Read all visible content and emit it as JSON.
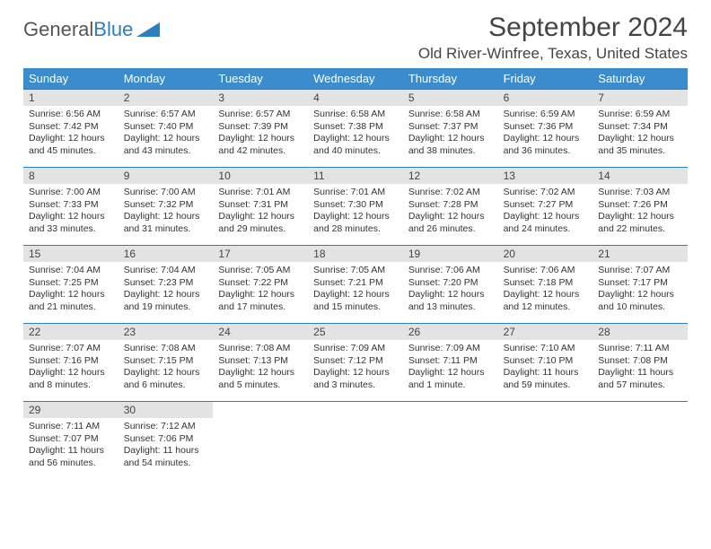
{
  "logo": {
    "text1": "General",
    "text2": "Blue"
  },
  "title": "September 2024",
  "location": "Old River-Winfree, Texas, United States",
  "colors": {
    "header_bg": "#3b8ccc",
    "header_text": "#ffffff",
    "daynum_bg": "#e3e3e3",
    "week_border": "#2a7fbd",
    "logo_blue": "#2a7fbd"
  },
  "day_names": [
    "Sunday",
    "Monday",
    "Tuesday",
    "Wednesday",
    "Thursday",
    "Friday",
    "Saturday"
  ],
  "weeks": [
    [
      {
        "n": "1",
        "sr": "Sunrise: 6:56 AM",
        "ss": "Sunset: 7:42 PM",
        "d1": "Daylight: 12 hours",
        "d2": "and 45 minutes."
      },
      {
        "n": "2",
        "sr": "Sunrise: 6:57 AM",
        "ss": "Sunset: 7:40 PM",
        "d1": "Daylight: 12 hours",
        "d2": "and 43 minutes."
      },
      {
        "n": "3",
        "sr": "Sunrise: 6:57 AM",
        "ss": "Sunset: 7:39 PM",
        "d1": "Daylight: 12 hours",
        "d2": "and 42 minutes."
      },
      {
        "n": "4",
        "sr": "Sunrise: 6:58 AM",
        "ss": "Sunset: 7:38 PM",
        "d1": "Daylight: 12 hours",
        "d2": "and 40 minutes."
      },
      {
        "n": "5",
        "sr": "Sunrise: 6:58 AM",
        "ss": "Sunset: 7:37 PM",
        "d1": "Daylight: 12 hours",
        "d2": "and 38 minutes."
      },
      {
        "n": "6",
        "sr": "Sunrise: 6:59 AM",
        "ss": "Sunset: 7:36 PM",
        "d1": "Daylight: 12 hours",
        "d2": "and 36 minutes."
      },
      {
        "n": "7",
        "sr": "Sunrise: 6:59 AM",
        "ss": "Sunset: 7:34 PM",
        "d1": "Daylight: 12 hours",
        "d2": "and 35 minutes."
      }
    ],
    [
      {
        "n": "8",
        "sr": "Sunrise: 7:00 AM",
        "ss": "Sunset: 7:33 PM",
        "d1": "Daylight: 12 hours",
        "d2": "and 33 minutes."
      },
      {
        "n": "9",
        "sr": "Sunrise: 7:00 AM",
        "ss": "Sunset: 7:32 PM",
        "d1": "Daylight: 12 hours",
        "d2": "and 31 minutes."
      },
      {
        "n": "10",
        "sr": "Sunrise: 7:01 AM",
        "ss": "Sunset: 7:31 PM",
        "d1": "Daylight: 12 hours",
        "d2": "and 29 minutes."
      },
      {
        "n": "11",
        "sr": "Sunrise: 7:01 AM",
        "ss": "Sunset: 7:30 PM",
        "d1": "Daylight: 12 hours",
        "d2": "and 28 minutes."
      },
      {
        "n": "12",
        "sr": "Sunrise: 7:02 AM",
        "ss": "Sunset: 7:28 PM",
        "d1": "Daylight: 12 hours",
        "d2": "and 26 minutes."
      },
      {
        "n": "13",
        "sr": "Sunrise: 7:02 AM",
        "ss": "Sunset: 7:27 PM",
        "d1": "Daylight: 12 hours",
        "d2": "and 24 minutes."
      },
      {
        "n": "14",
        "sr": "Sunrise: 7:03 AM",
        "ss": "Sunset: 7:26 PM",
        "d1": "Daylight: 12 hours",
        "d2": "and 22 minutes."
      }
    ],
    [
      {
        "n": "15",
        "sr": "Sunrise: 7:04 AM",
        "ss": "Sunset: 7:25 PM",
        "d1": "Daylight: 12 hours",
        "d2": "and 21 minutes."
      },
      {
        "n": "16",
        "sr": "Sunrise: 7:04 AM",
        "ss": "Sunset: 7:23 PM",
        "d1": "Daylight: 12 hours",
        "d2": "and 19 minutes."
      },
      {
        "n": "17",
        "sr": "Sunrise: 7:05 AM",
        "ss": "Sunset: 7:22 PM",
        "d1": "Daylight: 12 hours",
        "d2": "and 17 minutes."
      },
      {
        "n": "18",
        "sr": "Sunrise: 7:05 AM",
        "ss": "Sunset: 7:21 PM",
        "d1": "Daylight: 12 hours",
        "d2": "and 15 minutes."
      },
      {
        "n": "19",
        "sr": "Sunrise: 7:06 AM",
        "ss": "Sunset: 7:20 PM",
        "d1": "Daylight: 12 hours",
        "d2": "and 13 minutes."
      },
      {
        "n": "20",
        "sr": "Sunrise: 7:06 AM",
        "ss": "Sunset: 7:18 PM",
        "d1": "Daylight: 12 hours",
        "d2": "and 12 minutes."
      },
      {
        "n": "21",
        "sr": "Sunrise: 7:07 AM",
        "ss": "Sunset: 7:17 PM",
        "d1": "Daylight: 12 hours",
        "d2": "and 10 minutes."
      }
    ],
    [
      {
        "n": "22",
        "sr": "Sunrise: 7:07 AM",
        "ss": "Sunset: 7:16 PM",
        "d1": "Daylight: 12 hours",
        "d2": "and 8 minutes."
      },
      {
        "n": "23",
        "sr": "Sunrise: 7:08 AM",
        "ss": "Sunset: 7:15 PM",
        "d1": "Daylight: 12 hours",
        "d2": "and 6 minutes."
      },
      {
        "n": "24",
        "sr": "Sunrise: 7:08 AM",
        "ss": "Sunset: 7:13 PM",
        "d1": "Daylight: 12 hours",
        "d2": "and 5 minutes."
      },
      {
        "n": "25",
        "sr": "Sunrise: 7:09 AM",
        "ss": "Sunset: 7:12 PM",
        "d1": "Daylight: 12 hours",
        "d2": "and 3 minutes."
      },
      {
        "n": "26",
        "sr": "Sunrise: 7:09 AM",
        "ss": "Sunset: 7:11 PM",
        "d1": "Daylight: 12 hours",
        "d2": "and 1 minute."
      },
      {
        "n": "27",
        "sr": "Sunrise: 7:10 AM",
        "ss": "Sunset: 7:10 PM",
        "d1": "Daylight: 11 hours",
        "d2": "and 59 minutes."
      },
      {
        "n": "28",
        "sr": "Sunrise: 7:11 AM",
        "ss": "Sunset: 7:08 PM",
        "d1": "Daylight: 11 hours",
        "d2": "and 57 minutes."
      }
    ],
    [
      {
        "n": "29",
        "sr": "Sunrise: 7:11 AM",
        "ss": "Sunset: 7:07 PM",
        "d1": "Daylight: 11 hours",
        "d2": "and 56 minutes."
      },
      {
        "n": "30",
        "sr": "Sunrise: 7:12 AM",
        "ss": "Sunset: 7:06 PM",
        "d1": "Daylight: 11 hours",
        "d2": "and 54 minutes."
      },
      {
        "empty": true
      },
      {
        "empty": true
      },
      {
        "empty": true
      },
      {
        "empty": true
      },
      {
        "empty": true
      }
    ]
  ]
}
